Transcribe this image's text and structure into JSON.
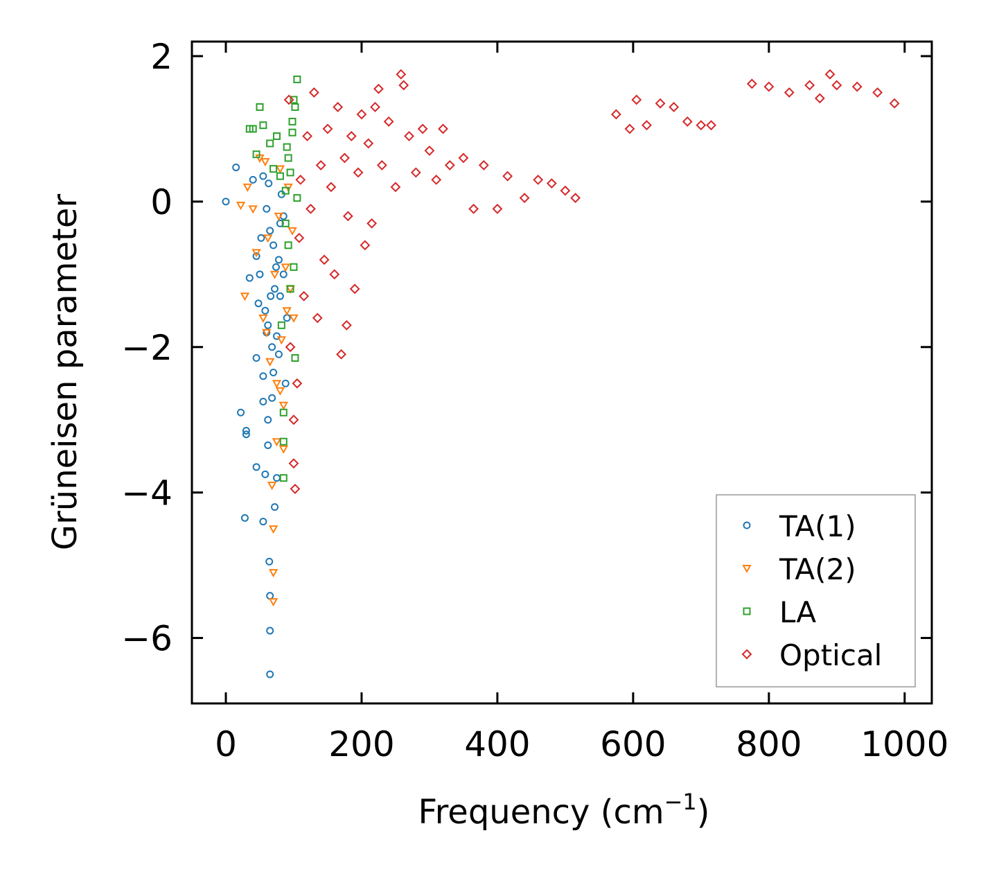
{
  "chart_data": {
    "type": "scatter",
    "title": "",
    "xlabel": "Frequency (cm",
    "xlabel_sup": "−1",
    "xlabel_end": ")",
    "ylabel": "Grüneisen parameter",
    "xlim": [
      -50,
      1040
    ],
    "ylim": [
      -6.9,
      2.2
    ],
    "x_ticks": [
      0,
      200,
      400,
      600,
      800,
      1000
    ],
    "x_tick_labels": [
      "0",
      "200",
      "400",
      "600",
      "800",
      "1000"
    ],
    "y_ticks": [
      2,
      0,
      -2,
      -4,
      -6
    ],
    "y_tick_labels": [
      "2",
      "0",
      "−2",
      "−4",
      "−6"
    ],
    "grid": false,
    "legend_position": "lower-right",
    "series": [
      {
        "name": "TA(1)",
        "marker": "circle",
        "color": "#1f77b4",
        "points": [
          [
            0,
            0
          ],
          [
            15,
            0.47
          ],
          [
            22,
            -2.9
          ],
          [
            28,
            -4.35
          ],
          [
            30,
            -3.15
          ],
          [
            30,
            -3.2
          ],
          [
            35,
            -1.05
          ],
          [
            40,
            0.3
          ],
          [
            45,
            -0.75
          ],
          [
            45,
            -2.15
          ],
          [
            45,
            -3.65
          ],
          [
            48,
            -1.4
          ],
          [
            52,
            -0.5
          ],
          [
            55,
            -2.4
          ],
          [
            55,
            -2.75
          ],
          [
            55,
            -4.4
          ],
          [
            58,
            -3.75
          ],
          [
            60,
            -1.8
          ],
          [
            62,
            -3.0
          ],
          [
            62,
            -3.35
          ],
          [
            63,
            0.25
          ],
          [
            64,
            -4.95
          ],
          [
            65,
            -5.42
          ],
          [
            65,
            -5.9
          ],
          [
            65,
            -6.5
          ],
          [
            66,
            -1.3
          ],
          [
            68,
            -2.0
          ],
          [
            70,
            -0.6
          ],
          [
            70,
            -2.35
          ],
          [
            72,
            -4.2
          ],
          [
            74,
            -0.9
          ],
          [
            75,
            -1.85
          ],
          [
            78,
            -2.1
          ],
          [
            80,
            -0.3
          ],
          [
            80,
            -1.3
          ],
          [
            82,
            0.1
          ],
          [
            85,
            -0.2
          ],
          [
            85,
            -1.0
          ],
          [
            88,
            -2.5
          ],
          [
            90,
            -1.6
          ],
          [
            60,
            -0.1
          ],
          [
            65,
            -0.4
          ],
          [
            55,
            0.35
          ],
          [
            75,
            -3.8
          ],
          [
            68,
            -2.7
          ],
          [
            50,
            -1.0
          ],
          [
            58,
            -1.5
          ],
          [
            62,
            -1.7
          ],
          [
            72,
            -1.2
          ],
          [
            78,
            -0.8
          ]
        ]
      },
      {
        "name": "TA(2)",
        "marker": "triangle-down",
        "color": "#ff7f0e",
        "points": [
          [
            22,
            -0.05
          ],
          [
            28,
            -1.3
          ],
          [
            32,
            0.2
          ],
          [
            40,
            -0.1
          ],
          [
            45,
            -0.7
          ],
          [
            50,
            0.6
          ],
          [
            55,
            -1.6
          ],
          [
            58,
            0.55
          ],
          [
            60,
            -1.8
          ],
          [
            62,
            -0.5
          ],
          [
            65,
            -2.2
          ],
          [
            68,
            -3.9
          ],
          [
            70,
            -4.5
          ],
          [
            70,
            -5.1
          ],
          [
            70,
            -5.5
          ],
          [
            72,
            -1.0
          ],
          [
            75,
            -2.5
          ],
          [
            75,
            -3.3
          ],
          [
            78,
            -0.2
          ],
          [
            80,
            0.45
          ],
          [
            82,
            -1.9
          ],
          [
            85,
            -2.8
          ],
          [
            85,
            -3.4
          ],
          [
            88,
            -0.9
          ],
          [
            90,
            -1.5
          ],
          [
            92,
            0.2
          ],
          [
            95,
            -1.2
          ],
          [
            98,
            -0.4
          ],
          [
            100,
            -1.6
          ],
          [
            80,
            -2.6
          ]
        ]
      },
      {
        "name": "LA",
        "marker": "square",
        "color": "#2ca02c",
        "points": [
          [
            35,
            1.0
          ],
          [
            40,
            1.0
          ],
          [
            45,
            0.65
          ],
          [
            50,
            1.3
          ],
          [
            55,
            1.05
          ],
          [
            65,
            0.8
          ],
          [
            70,
            0.45
          ],
          [
            75,
            0.9
          ],
          [
            80,
            0.35
          ],
          [
            82,
            -1.7
          ],
          [
            85,
            -2.9
          ],
          [
            85,
            -3.3
          ],
          [
            85,
            -3.8
          ],
          [
            88,
            0.15
          ],
          [
            90,
            0.75
          ],
          [
            92,
            -0.6
          ],
          [
            95,
            0.4
          ],
          [
            95,
            -1.2
          ],
          [
            98,
            0.95
          ],
          [
            100,
            1.4
          ],
          [
            100,
            -0.9
          ],
          [
            102,
            1.3
          ],
          [
            102,
            -2.15
          ],
          [
            105,
            1.68
          ],
          [
            105,
            0.05
          ],
          [
            98,
            1.1
          ],
          [
            92,
            0.6
          ],
          [
            88,
            -0.3
          ]
        ]
      },
      {
        "name": "Optical",
        "marker": "diamond",
        "color": "#d62728",
        "points": [
          [
            93,
            1.4
          ],
          [
            95,
            -2.0
          ],
          [
            100,
            -3.0
          ],
          [
            100,
            -3.6
          ],
          [
            102,
            -3.95
          ],
          [
            105,
            -2.5
          ],
          [
            108,
            -0.5
          ],
          [
            110,
            0.3
          ],
          [
            115,
            -1.3
          ],
          [
            120,
            0.9
          ],
          [
            125,
            -0.1
          ],
          [
            130,
            1.5
          ],
          [
            135,
            -1.6
          ],
          [
            140,
            0.5
          ],
          [
            145,
            -0.8
          ],
          [
            150,
            1.0
          ],
          [
            155,
            0.2
          ],
          [
            160,
            -1.0
          ],
          [
            165,
            1.3
          ],
          [
            170,
            -2.1
          ],
          [
            175,
            0.6
          ],
          [
            178,
            -1.7
          ],
          [
            180,
            -0.2
          ],
          [
            185,
            0.9
          ],
          [
            190,
            -1.2
          ],
          [
            195,
            0.4
          ],
          [
            200,
            1.2
          ],
          [
            205,
            -0.6
          ],
          [
            210,
            0.8
          ],
          [
            215,
            -0.3
          ],
          [
            220,
            1.3
          ],
          [
            225,
            1.55
          ],
          [
            230,
            0.5
          ],
          [
            240,
            1.1
          ],
          [
            250,
            0.2
          ],
          [
            258,
            1.75
          ],
          [
            262,
            1.6
          ],
          [
            270,
            0.9
          ],
          [
            280,
            0.4
          ],
          [
            290,
            1.0
          ],
          [
            300,
            0.7
          ],
          [
            310,
            0.3
          ],
          [
            320,
            1.0
          ],
          [
            330,
            0.5
          ],
          [
            350,
            0.6
          ],
          [
            365,
            -0.1
          ],
          [
            380,
            0.5
          ],
          [
            400,
            -0.1
          ],
          [
            415,
            0.35
          ],
          [
            440,
            0.05
          ],
          [
            460,
            0.3
          ],
          [
            480,
            0.25
          ],
          [
            500,
            0.15
          ],
          [
            515,
            0.05
          ],
          [
            575,
            1.2
          ],
          [
            595,
            1.0
          ],
          [
            605,
            1.4
          ],
          [
            620,
            1.05
          ],
          [
            640,
            1.35
          ],
          [
            660,
            1.3
          ],
          [
            680,
            1.1
          ],
          [
            700,
            1.05
          ],
          [
            715,
            1.05
          ],
          [
            775,
            1.62
          ],
          [
            800,
            1.58
          ],
          [
            830,
            1.5
          ],
          [
            860,
            1.6
          ],
          [
            875,
            1.42
          ],
          [
            890,
            1.75
          ],
          [
            900,
            1.6
          ],
          [
            930,
            1.58
          ],
          [
            960,
            1.5
          ],
          [
            985,
            1.35
          ]
        ]
      }
    ]
  }
}
